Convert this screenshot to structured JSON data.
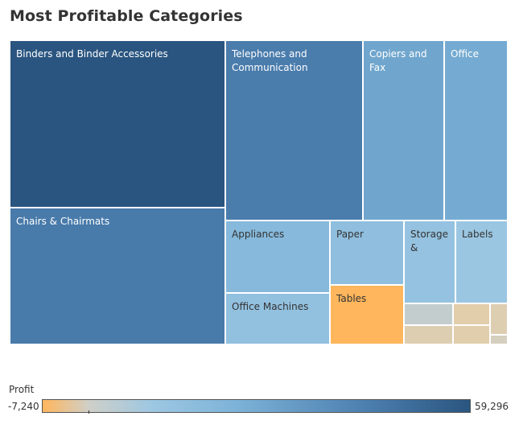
{
  "title": "Most Profitable Categories",
  "legend": {
    "title": "Profit",
    "min_label": "-7,240",
    "max_label": "59,296"
  },
  "colors": {
    "highest": "#2a5580",
    "mid": "#7db3d8",
    "near_zero": "#d6d6d0",
    "lowest": "#ffb65c",
    "tile_border": "#ffffff"
  },
  "chart_data": {
    "type": "treemap",
    "title": "Most Profitable Categories",
    "size_measure": "Profit",
    "color_measure": "Profit",
    "color_range": [
      -7240,
      59296
    ],
    "tiles": [
      {
        "key": "binders",
        "label": "Binders and Binder Accessories",
        "profit": 59296
      },
      {
        "key": "chairs",
        "label": "Chairs & Chairmats",
        "profit": 39000
      },
      {
        "key": "telephones",
        "label": "Telephones and\nCommunication",
        "profit": 38000
      },
      {
        "key": "copiers",
        "label": "Copiers and\nFax",
        "profit": 22000
      },
      {
        "key": "office-furnishings",
        "label": "Office",
        "profit": 20000
      },
      {
        "key": "appliances",
        "label": "Appliances",
        "profit": 14000
      },
      {
        "key": "office-machines",
        "label": "Office Machines",
        "profit": 10000
      },
      {
        "key": "paper",
        "label": "Paper",
        "profit": 11000
      },
      {
        "key": "tables",
        "label": "Tables",
        "profit": -7240
      },
      {
        "key": "storage",
        "label": "Storage\n&",
        "profit": 9000
      },
      {
        "key": "labels",
        "label": "Labels",
        "profit": 7000
      },
      {
        "key": "small-1",
        "label": "",
        "profit": 1500
      },
      {
        "key": "small-2",
        "label": "",
        "profit": -1500
      },
      {
        "key": "small-3",
        "label": "",
        "profit": -2000
      },
      {
        "key": "small-4",
        "label": "",
        "profit": -1800
      },
      {
        "key": "small-5",
        "label": "",
        "profit": -1500
      },
      {
        "key": "small-6",
        "label": "",
        "profit": -600
      }
    ]
  }
}
